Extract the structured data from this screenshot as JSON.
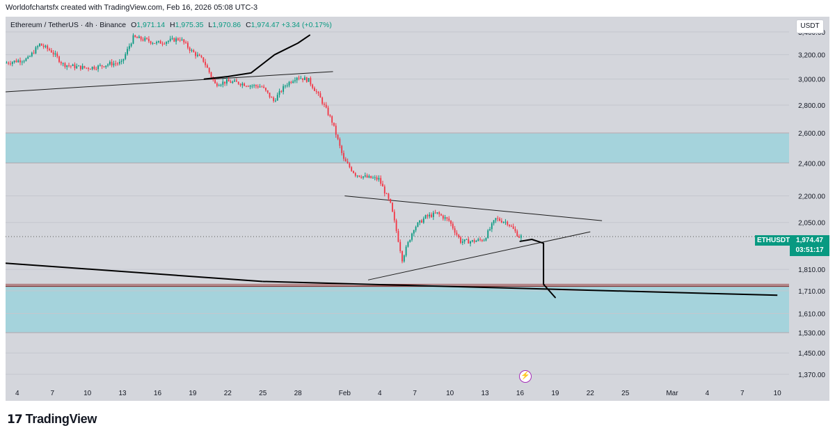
{
  "caption": "Worldofchartsfx created with TradingView.com, Feb 16, 2026 05:08 UTC-3",
  "header": {
    "symbol": "Ethereum / TetherUS · 4h · Binance",
    "open_label": "O",
    "open": "1,971.14",
    "high_label": "H",
    "high": "1,975.35",
    "low_label": "L",
    "low": "1,970.86",
    "close_label": "C",
    "close": "1,974.47",
    "change": "+3.34 (+0.17%)"
  },
  "currency": "USDT",
  "price_tag": {
    "ticker": "ETHUSDT",
    "price": "1,974.47",
    "countdown": "03:51:17"
  },
  "logo": {
    "mark": "17",
    "text": "TradingView"
  },
  "icons": {
    "flash": "lightning-icon"
  },
  "colors": {
    "up": "#089981",
    "down": "#f23645",
    "zone": "#a5d3dc",
    "background": "#d4d6dc",
    "drawing": "#000000"
  },
  "chart_data": {
    "type": "candlestick",
    "symbol": "ETHUSDT",
    "interval": "4h",
    "y_scale": "log",
    "ylim": [
      1325,
      3540
    ],
    "yticks": [
      3400,
      3200,
      3000,
      2800,
      2600,
      2400,
      2200,
      2050,
      1810,
      1710,
      1610,
      1530,
      1450,
      1370
    ],
    "ytick_labels": [
      "3,400.00",
      "3,200.00",
      "3,000.00",
      "2,800.00",
      "2,600.00",
      "2,400.00",
      "2,200.00",
      "2,050.00",
      "1,810.00",
      "1,710.00",
      "1,610.00",
      "1,530.00",
      "1,450.00",
      "1,370.00"
    ],
    "xlim": [
      "2026-01-03",
      "2026-03-11"
    ],
    "xticks": [
      "2026-01-04",
      "2026-01-07",
      "2026-01-10",
      "2026-01-13",
      "2026-01-16",
      "2026-01-19",
      "2026-01-22",
      "2026-01-25",
      "2026-01-28",
      "2026-02-01",
      "2026-02-04",
      "2026-02-07",
      "2026-02-10",
      "2026-02-13",
      "2026-02-16",
      "2026-02-19",
      "2026-02-22",
      "2026-02-25",
      "2026-03-01",
      "2026-03-04",
      "2026-03-07",
      "2026-03-10"
    ],
    "xtick_labels": [
      "4",
      "7",
      "10",
      "13",
      "16",
      "19",
      "22",
      "25",
      "28",
      "Feb",
      "4",
      "7",
      "10",
      "13",
      "16",
      "19",
      "22",
      "25",
      "Mar",
      "4",
      "7",
      "10"
    ],
    "close_path": [
      {
        "x": "2026-01-03",
        "y": 3130
      },
      {
        "x": "2026-01-05",
        "y": 3165
      },
      {
        "x": "2026-01-06",
        "y": 3290
      },
      {
        "x": "2026-01-07",
        "y": 3230
      },
      {
        "x": "2026-01-08",
        "y": 3120
      },
      {
        "x": "2026-01-09",
        "y": 3100
      },
      {
        "x": "2026-01-10",
        "y": 3090
      },
      {
        "x": "2026-01-11",
        "y": 3100
      },
      {
        "x": "2026-01-12",
        "y": 3125
      },
      {
        "x": "2026-01-13",
        "y": 3130
      },
      {
        "x": "2026-01-14",
        "y": 3350
      },
      {
        "x": "2026-01-15",
        "y": 3330
      },
      {
        "x": "2026-01-16",
        "y": 3300
      },
      {
        "x": "2026-01-17",
        "y": 3320
      },
      {
        "x": "2026-01-18",
        "y": 3340
      },
      {
        "x": "2026-01-19",
        "y": 3230
      },
      {
        "x": "2026-01-20",
        "y": 3150
      },
      {
        "x": "2026-01-21",
        "y": 2960
      },
      {
        "x": "2026-01-22",
        "y": 2980
      },
      {
        "x": "2026-01-23",
        "y": 2970
      },
      {
        "x": "2026-01-24",
        "y": 2950
      },
      {
        "x": "2026-01-25",
        "y": 2940
      },
      {
        "x": "2026-01-26",
        "y": 2830
      },
      {
        "x": "2026-01-27",
        "y": 2950
      },
      {
        "x": "2026-01-28",
        "y": 3020
      },
      {
        "x": "2026-01-29",
        "y": 2990
      },
      {
        "x": "2026-01-30",
        "y": 2850
      },
      {
        "x": "2026-01-31",
        "y": 2680
      },
      {
        "x": "2026-02-01",
        "y": 2420
      },
      {
        "x": "2026-02-02",
        "y": 2330
      },
      {
        "x": "2026-02-03",
        "y": 2310
      },
      {
        "x": "2026-02-04",
        "y": 2300
      },
      {
        "x": "2026-02-05",
        "y": 2150
      },
      {
        "x": "2026-02-06",
        "y": 1860
      },
      {
        "x": "2026-02-07",
        "y": 2020
      },
      {
        "x": "2026-02-08",
        "y": 2080
      },
      {
        "x": "2026-02-09",
        "y": 2100
      },
      {
        "x": "2026-02-10",
        "y": 2060
      },
      {
        "x": "2026-02-11",
        "y": 1950
      },
      {
        "x": "2026-02-12",
        "y": 1950
      },
      {
        "x": "2026-02-13",
        "y": 1960
      },
      {
        "x": "2026-02-14",
        "y": 2070
      },
      {
        "x": "2026-02-15",
        "y": 2050
      },
      {
        "x": "2026-02-16",
        "y": 1974.47
      }
    ],
    "zones": [
      {
        "from": 2400,
        "to": 2600
      },
      {
        "from": 1530,
        "to": 1730
      }
    ],
    "horizontal_lines": [
      1740,
      1733
    ],
    "dotted_line": 1974.47,
    "trendlines": [
      {
        "x1": "2026-01-03",
        "y1": 2900,
        "x2": "2026-01-31",
        "y2": 3060
      },
      {
        "x1": "2026-02-01",
        "y1": 2200,
        "x2": "2026-02-23",
        "y2": 2060
      },
      {
        "x1": "2026-02-03",
        "y1": 1760,
        "x2": "2026-02-22",
        "y2": 2000
      },
      {
        "x1": "2026-01-03",
        "y1": 1840,
        "x2": "2026-01-25",
        "y2": 1753
      },
      {
        "x1": "2026-01-25",
        "y1": 1753,
        "x2": "2026-03-10",
        "y2": 1690
      }
    ],
    "freehand_drawings": [
      [
        {
          "x": "2026-01-20",
          "y": 3000
        },
        {
          "x": "2026-01-22",
          "y": 3020
        },
        {
          "x": "2026-01-24",
          "y": 3050
        },
        {
          "x": "2026-01-26",
          "y": 3200
        },
        {
          "x": "2026-01-27",
          "y": 3250
        },
        {
          "x": "2026-01-28",
          "y": 3300
        },
        {
          "x": "2026-01-29",
          "y": 3370
        }
      ],
      [
        {
          "x": "2026-02-16",
          "y": 1950
        },
        {
          "x": "2026-02-17",
          "y": 1960
        },
        {
          "x": "2026-02-18",
          "y": 1940
        },
        {
          "x": "2026-02-18",
          "y": 1850
        },
        {
          "x": "2026-02-18",
          "y": 1740
        },
        {
          "x": "2026-02-19",
          "y": 1680
        }
      ]
    ]
  }
}
